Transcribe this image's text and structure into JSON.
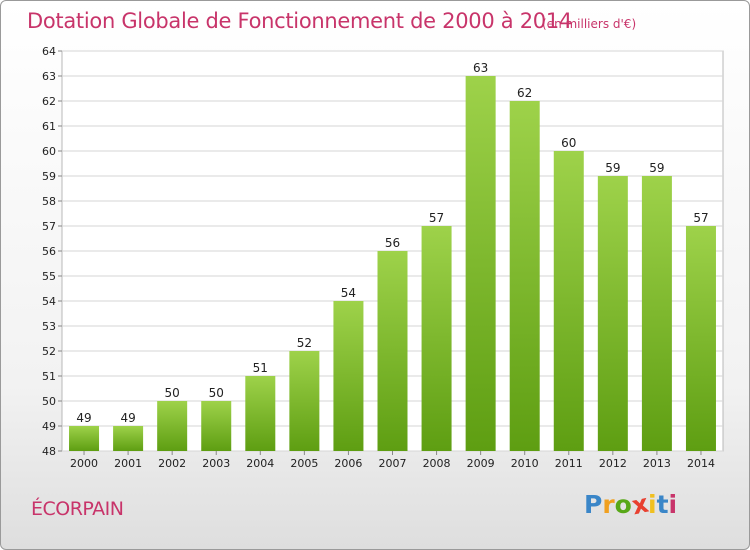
{
  "header": {
    "title": "Dotation Globale de Fonctionnement de 2000 à 2014",
    "unit": "(en milliers d'€)"
  },
  "footer": {
    "commune": "ÉCORPAIN",
    "logo": [
      "P",
      "r",
      "o",
      "x",
      "i",
      "t",
      "i"
    ]
  },
  "colors": {
    "title": "#c8346a",
    "bar_top": "#9ed24a",
    "bar_bottom": "#5e9e12",
    "logo": [
      "#3a86c8",
      "#f0a020",
      "#58a818",
      "#e84030",
      "#f0c020",
      "#3a86c8",
      "#c8346a"
    ]
  },
  "chart_data": {
    "type": "bar",
    "title": "Dotation Globale de Fonctionnement de 2000 à 2014",
    "subtitle": "(en milliers d'€)",
    "categories": [
      "2000",
      "2001",
      "2002",
      "2003",
      "2004",
      "2005",
      "2006",
      "2007",
      "2008",
      "2009",
      "2010",
      "2011",
      "2012",
      "2013",
      "2014"
    ],
    "values": [
      49,
      49,
      50,
      50,
      51,
      52,
      54,
      56,
      57,
      63,
      62,
      60,
      59,
      59,
      57
    ],
    "ylim": [
      48,
      64
    ],
    "yticks": [
      48,
      49,
      50,
      51,
      52,
      53,
      54,
      55,
      56,
      57,
      58,
      59,
      60,
      61,
      62,
      63,
      64
    ],
    "grid": true,
    "legend": "none"
  }
}
